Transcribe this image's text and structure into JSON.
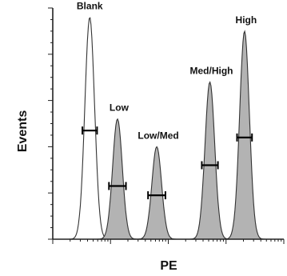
{
  "chart_data": {
    "type": "area",
    "title": "",
    "xlabel": "PE",
    "ylabel": "Events",
    "x_scale": "log",
    "ylim": [
      0,
      100
    ],
    "grid": false,
    "legend": "none",
    "peaks": [
      {
        "label": "Blank",
        "center": 0.16,
        "height": 96,
        "gate_y": 47,
        "filled": false
      },
      {
        "label": "Low",
        "center": 0.28,
        "height": 52,
        "gate_y": 23,
        "filled": true
      },
      {
        "label": "Low/Med",
        "center": 0.45,
        "height": 40,
        "gate_y": 19,
        "filled": true
      },
      {
        "label": "Med/High",
        "center": 0.68,
        "height": 68,
        "gate_y": 32,
        "filled": true
      },
      {
        "label": "High",
        "center": 0.83,
        "height": 90,
        "gate_y": 44,
        "filled": true
      }
    ],
    "colors": {
      "filled": "#b3b3b3",
      "outline": "#333333",
      "axis": "#222222"
    }
  }
}
